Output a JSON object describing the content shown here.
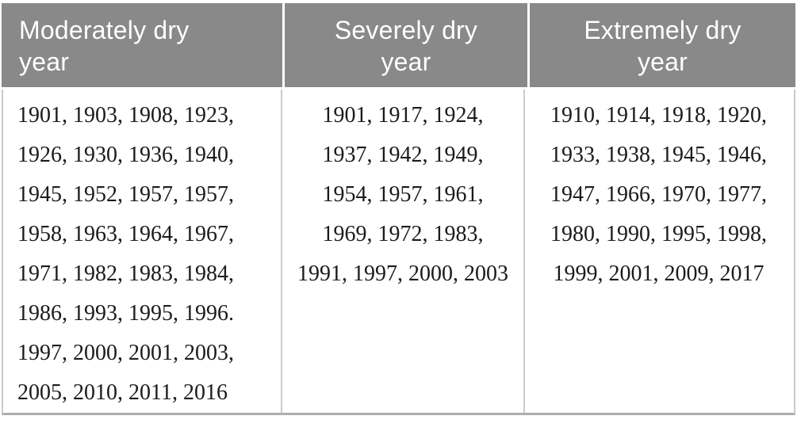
{
  "table": {
    "columns": [
      {
        "header": "Moderately dry year",
        "align": "left",
        "lines": [
          "1901, 1903, 1908, 1923,",
          "1926, 1930, 1936, 1940,",
          "1945, 1952, 1957, 1957,",
          "1958, 1963, 1964, 1967,",
          "1971, 1982, 1983, 1984,",
          "1986, 1993, 1995, 1996.",
          "1997, 2000, 2001, 2003,",
          "2005, 2010, 2011, 2016"
        ],
        "years": [
          1901,
          1903,
          1908,
          1923,
          1926,
          1930,
          1936,
          1940,
          1945,
          1952,
          1957,
          1957,
          1958,
          1963,
          1964,
          1967,
          1971,
          1982,
          1983,
          1984,
          1986,
          1993,
          1995,
          1996,
          1997,
          2000,
          2001,
          2003,
          2005,
          2010,
          2011,
          2016
        ]
      },
      {
        "header": "Severely dry year",
        "align": "center",
        "lines": [
          "1901, 1917, 1924,",
          "1937, 1942, 1949,",
          "1954, 1957, 1961,",
          "1969, 1972, 1983,",
          "1991, 1997, 2000, 2003"
        ],
        "years": [
          1901,
          1917,
          1924,
          1937,
          1942,
          1949,
          1954,
          1957,
          1961,
          1969,
          1972,
          1983,
          1991,
          1997,
          2000,
          2003
        ]
      },
      {
        "header": "Extremely dry year",
        "align": "center",
        "lines": [
          "1910, 1914, 1918, 1920,",
          "1933, 1938, 1945, 1946,",
          "1947, 1966, 1970, 1977,",
          "1980, 1990, 1995, 1998,",
          "1999, 2001, 2009, 2017"
        ],
        "years": [
          1910,
          1914,
          1918,
          1920,
          1933,
          1938,
          1945,
          1946,
          1947,
          1966,
          1970,
          1977,
          1980,
          1990,
          1995,
          1998,
          1999,
          2001,
          2009,
          2017
        ]
      }
    ],
    "colors": {
      "header_bg": "#898989",
      "header_text": "#ffffff",
      "body_text": "#1b1b1b",
      "separator_border": "#cccccc",
      "bottom_border": "#aeaeae"
    }
  }
}
